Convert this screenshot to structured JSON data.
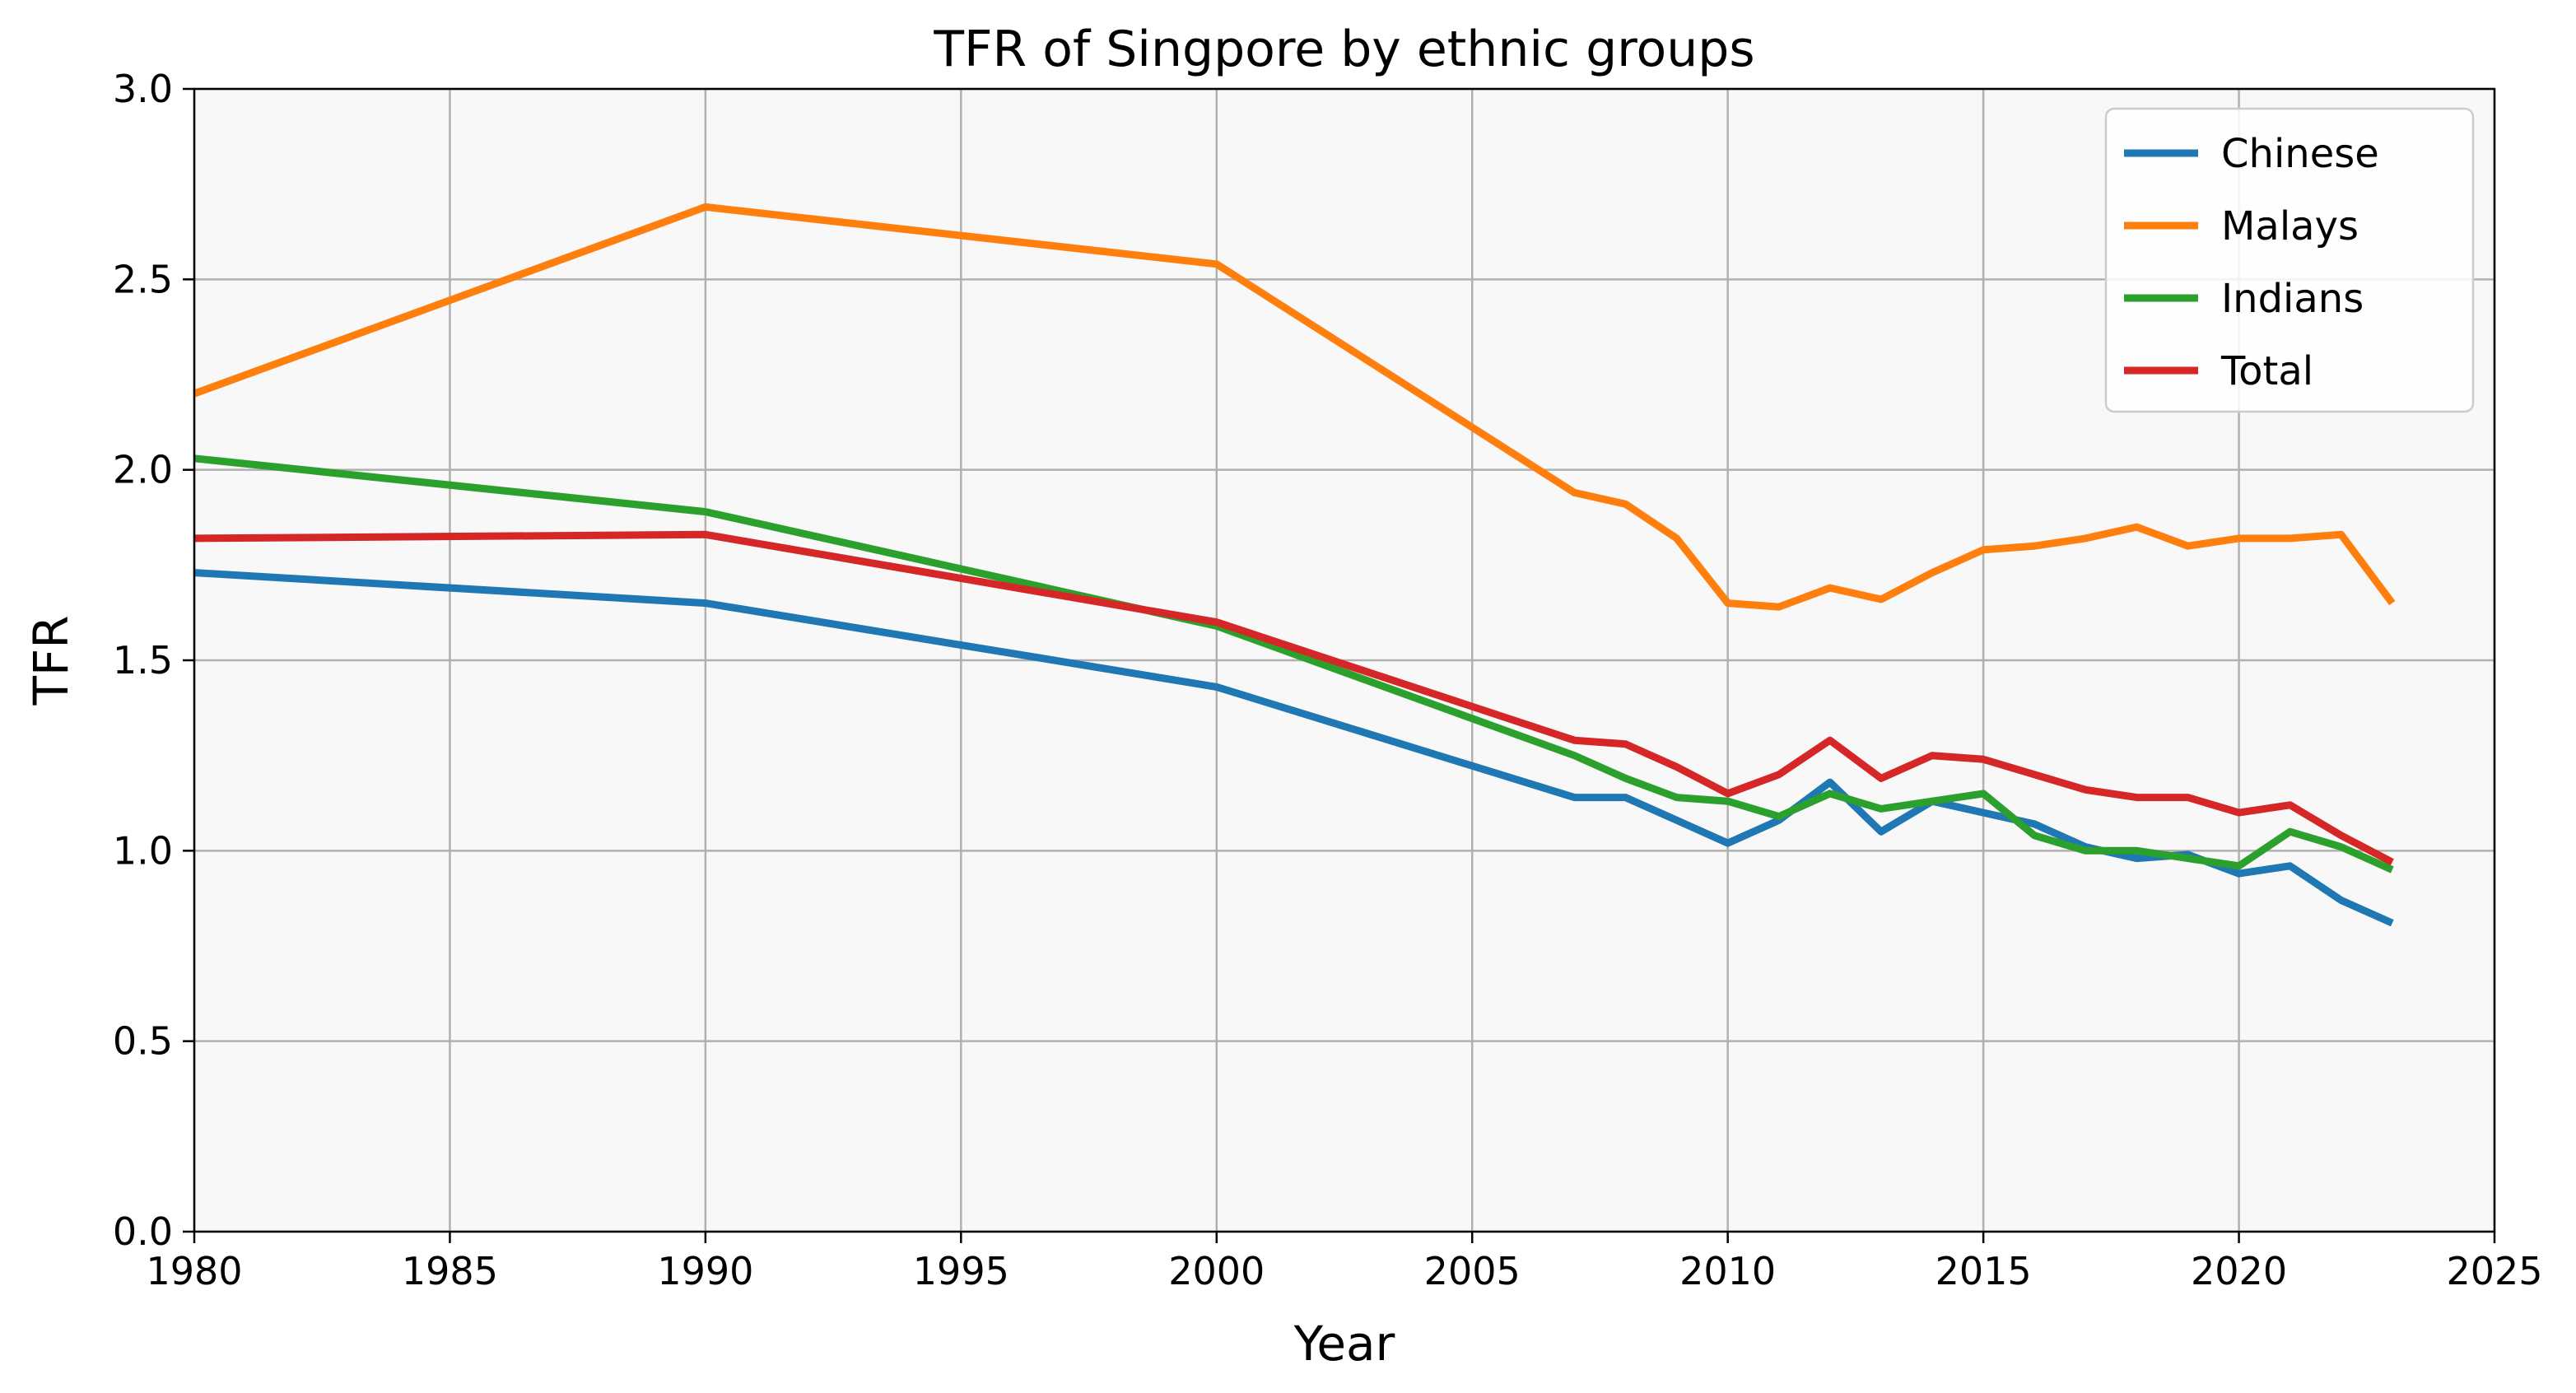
{
  "chart_data": {
    "type": "line",
    "title": "TFR of Singpore by ethnic groups",
    "xlabel": "Year",
    "ylabel": "TFR",
    "xlim": [
      1980,
      2025
    ],
    "ylim": [
      0.0,
      3.0
    ],
    "xticks": [
      1980,
      1985,
      1990,
      1995,
      2000,
      2005,
      2010,
      2015,
      2020,
      2025
    ],
    "yticks": [
      0.0,
      0.5,
      1.0,
      1.5,
      2.0,
      2.5,
      3.0
    ],
    "xtick_labels": [
      "1980",
      "1985",
      "1990",
      "1995",
      "2000",
      "2005",
      "2010",
      "2015",
      "2020",
      "2025"
    ],
    "ytick_labels": [
      "0.0",
      "0.5",
      "1.0",
      "1.5",
      "2.0",
      "2.5",
      "3.0"
    ],
    "grid": true,
    "legend_position": "top-right",
    "background": "#f8f8f8",
    "x": [
      1980,
      1990,
      2000,
      2007,
      2008,
      2009,
      2010,
      2011,
      2012,
      2013,
      2014,
      2015,
      2016,
      2017,
      2018,
      2019,
      2020,
      2021,
      2022,
      2023
    ],
    "series": [
      {
        "name": "Chinese",
        "color": "#1f77b4",
        "values": [
          1.73,
          1.65,
          1.43,
          1.14,
          1.14,
          1.08,
          1.02,
          1.08,
          1.18,
          1.05,
          1.13,
          1.1,
          1.07,
          1.01,
          0.98,
          0.99,
          0.94,
          0.96,
          0.87,
          0.81
        ]
      },
      {
        "name": "Malays",
        "color": "#ff7f0e",
        "values": [
          2.2,
          2.69,
          2.54,
          1.94,
          1.91,
          1.82,
          1.65,
          1.64,
          1.69,
          1.66,
          1.73,
          1.79,
          1.8,
          1.82,
          1.85,
          1.8,
          1.82,
          1.82,
          1.83,
          1.65
        ]
      },
      {
        "name": "Indians",
        "color": "#2ca02c",
        "values": [
          2.03,
          1.89,
          1.59,
          1.25,
          1.19,
          1.14,
          1.13,
          1.09,
          1.15,
          1.11,
          1.13,
          1.15,
          1.04,
          1.0,
          1.0,
          0.98,
          0.96,
          1.05,
          1.01,
          0.95
        ]
      },
      {
        "name": "Total",
        "color": "#d62728",
        "values": [
          1.82,
          1.83,
          1.6,
          1.29,
          1.28,
          1.22,
          1.15,
          1.2,
          1.29,
          1.19,
          1.25,
          1.24,
          1.2,
          1.16,
          1.14,
          1.14,
          1.1,
          1.12,
          1.04,
          0.97
        ]
      }
    ]
  }
}
